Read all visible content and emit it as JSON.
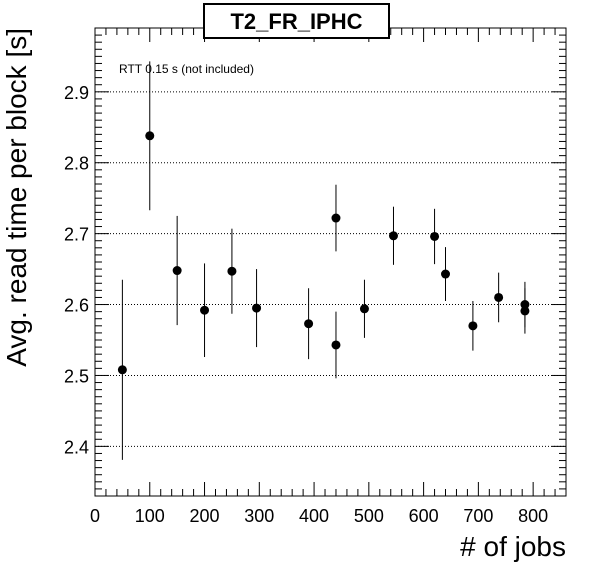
{
  "chart_data": {
    "type": "scatter",
    "title": "T2_FR_IPHC",
    "xlabel": "# of jobs",
    "ylabel": "Avg. read time per block [s]",
    "annotation": "RTT 0.15 s (not included)",
    "xlim": [
      0,
      860
    ],
    "ylim": [
      2.33,
      2.99
    ],
    "x_ticks": [
      0,
      100,
      200,
      300,
      400,
      500,
      600,
      700,
      800
    ],
    "y_ticks": [
      2.4,
      2.5,
      2.6,
      2.7,
      2.8,
      2.9
    ],
    "grid": "horizontal-dotted",
    "marker_color": "#000000",
    "points": [
      {
        "x": 50,
        "y": 2.508,
        "err": 0.127
      },
      {
        "x": 100,
        "y": 2.838,
        "err": 0.105
      },
      {
        "x": 150,
        "y": 2.648,
        "err": 0.077
      },
      {
        "x": 200,
        "y": 2.592,
        "err": 0.066
      },
      {
        "x": 250,
        "y": 2.647,
        "err": 0.06
      },
      {
        "x": 295,
        "y": 2.595,
        "err": 0.055
      },
      {
        "x": 390,
        "y": 2.573,
        "err": 0.05
      },
      {
        "x": 440,
        "y": 2.722,
        "err": 0.047
      },
      {
        "x": 440,
        "y": 2.543,
        "err": 0.047
      },
      {
        "x": 492,
        "y": 2.594,
        "err": 0.041
      },
      {
        "x": 545,
        "y": 2.697,
        "err": 0.041
      },
      {
        "x": 620,
        "y": 2.696,
        "err": 0.039
      },
      {
        "x": 640,
        "y": 2.643,
        "err": 0.038
      },
      {
        "x": 690,
        "y": 2.57,
        "err": 0.035
      },
      {
        "x": 737,
        "y": 2.61,
        "err": 0.035
      },
      {
        "x": 785,
        "y": 2.6,
        "err": 0.032
      },
      {
        "x": 785,
        "y": 2.591,
        "err": 0.032
      }
    ]
  }
}
